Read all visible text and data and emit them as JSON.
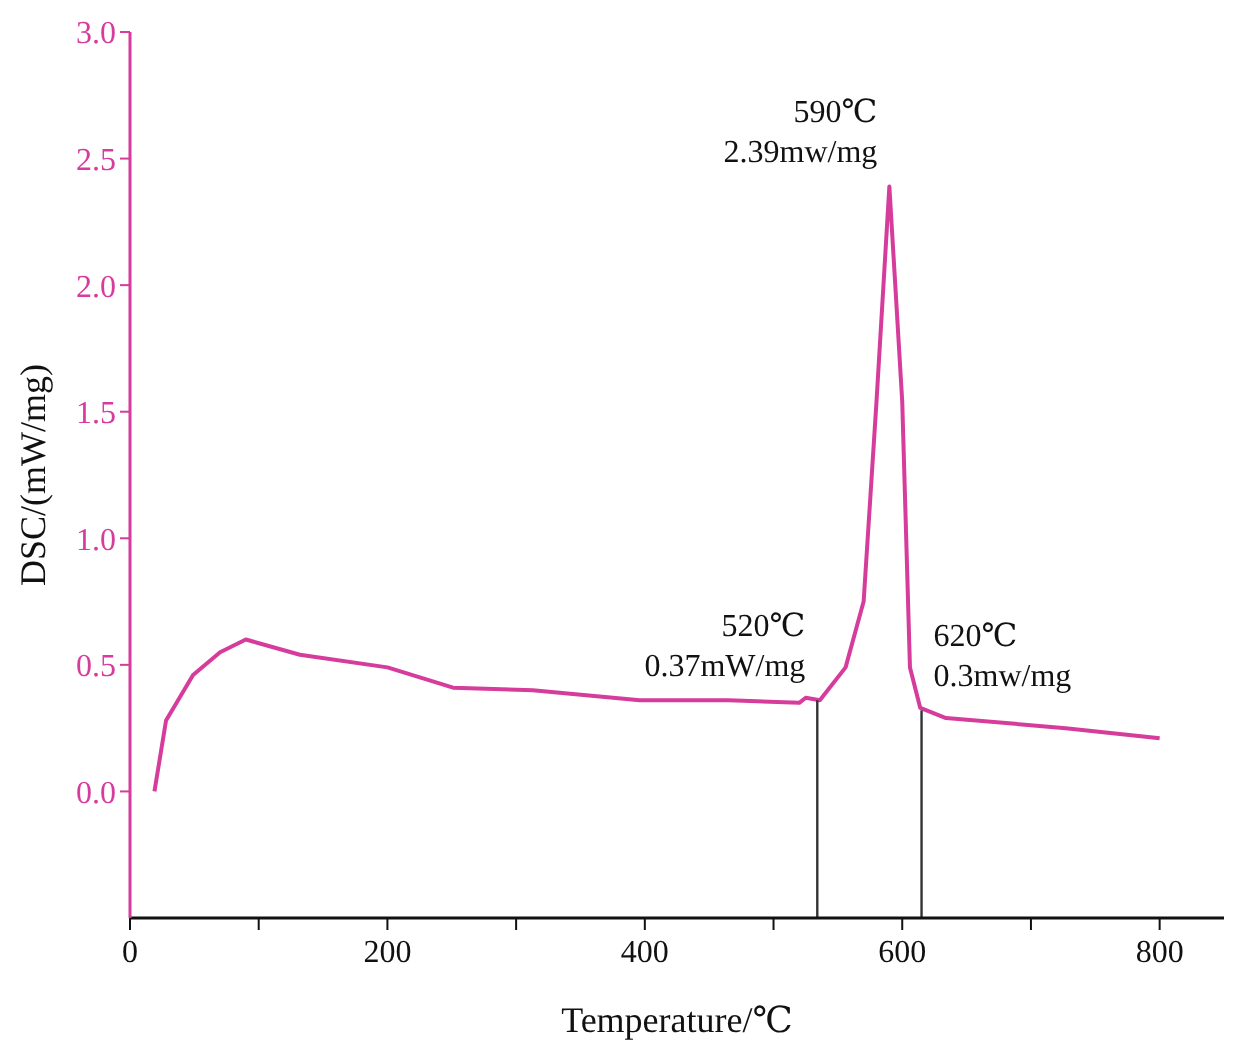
{
  "chart_data": {
    "type": "line",
    "xlabel": "Temperature/℃",
    "ylabel": "DSC/(mW/mg)",
    "xlim": [
      0,
      850
    ],
    "xticks": [
      0,
      {
        "value": 100,
        "label": null
      },
      200,
      {
        "value": 300,
        "label": null
      },
      400,
      {
        "value": 500,
        "label": null
      },
      600,
      {
        "value": 700,
        "label": null
      },
      800
    ],
    "ylim": [
      -0.5,
      3.0
    ],
    "yticks": [
      {
        "value": 0,
        "label": "0.0"
      },
      0.5,
      {
        "value": 1,
        "label": "1.0"
      },
      1.5,
      {
        "value": 2,
        "label": "2.0"
      },
      2.5,
      {
        "value": 3,
        "label": "3.0"
      }
    ],
    "marker": "none",
    "line_style": "solid",
    "series": [
      {
        "color": "#d63c9c",
        "x": [
          19,
          28,
          49,
          70,
          90,
          132,
          200,
          251,
          313,
          396,
          465,
          520,
          525,
          536,
          556,
          570,
          580,
          590,
          600,
          606,
          614,
          634,
          727,
          800
        ],
        "values": [
          0,
          0.28,
          0.46,
          0.55,
          0.6,
          0.54,
          0.49,
          0.41,
          0.4,
          0.36,
          0.36,
          0.35,
          0.37,
          0.36,
          0.49,
          0.75,
          1.54,
          2.39,
          1.54,
          0.49,
          0.33,
          0.29,
          0.25,
          0.21
        ]
      },
      {
        "color": "#333333",
        "x": [
          534,
          534
        ],
        "values": [
          -0.5,
          0.36
        ]
      },
      {
        "color": "#333333",
        "x": [
          615,
          615
        ],
        "values": [
          -0.5,
          0.32
        ]
      }
    ],
    "annotations": [
      {
        "text": "590℃\n2.39mw/mg",
        "x": 590,
        "y": 2.39
      },
      {
        "text": "520℃\n0.37mW/mg",
        "x": 534,
        "y": 0.36
      },
      {
        "text": "620℃\n0.3mw/mg",
        "x": 615,
        "y": 0.32
      }
    ]
  }
}
